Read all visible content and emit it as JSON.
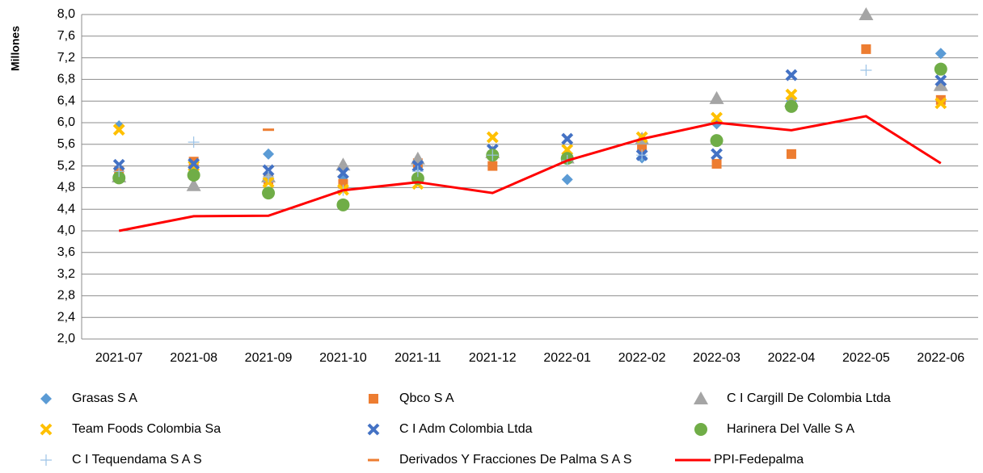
{
  "chart_data": {
    "type": "line",
    "y_label": "Millones",
    "categories": [
      "2021-07",
      "2021-08",
      "2021-09",
      "2021-10",
      "2021-11",
      "2021-12",
      "2022-01",
      "2022-02",
      "2022-03",
      "2022-04",
      "2022-05",
      "2022-06"
    ],
    "ylim": [
      2.0,
      8.0
    ],
    "yticks": [
      {
        "value": 2.0,
        "label": "2,0"
      },
      {
        "value": 2.4,
        "label": "2,4"
      },
      {
        "value": 2.8,
        "label": "2,8"
      },
      {
        "value": 3.2,
        "label": "3,2"
      },
      {
        "value": 3.6,
        "label": "3,6"
      },
      {
        "value": 4.0,
        "label": "4,0"
      },
      {
        "value": 4.4,
        "label": "4,4"
      },
      {
        "value": 4.8,
        "label": "4,8"
      },
      {
        "value": 5.2,
        "label": "5,2"
      },
      {
        "value": 5.6,
        "label": "5,6"
      },
      {
        "value": 6.0,
        "label": "6,0"
      },
      {
        "value": 6.4,
        "label": "6,4"
      },
      {
        "value": 6.8,
        "label": "6,8"
      },
      {
        "value": 7.2,
        "label": "7,2"
      },
      {
        "value": 7.6,
        "label": "7,6"
      },
      {
        "value": 8.0,
        "label": "8,0"
      }
    ],
    "grid": true,
    "series": [
      {
        "name": "Grasas S A",
        "color": "#5b9bd5",
        "marker": "diamond",
        "values": [
          5.94,
          5.2,
          5.42,
          5.0,
          5.2,
          5.4,
          4.95,
          5.35,
          5.98,
          6.4,
          null,
          7.28
        ]
      },
      {
        "name": "Qbco S A",
        "color": "#ed7d31",
        "marker": "square",
        "values": [
          5.1,
          5.28,
          4.95,
          4.87,
          5.25,
          5.2,
          5.35,
          5.54,
          5.24,
          5.42,
          7.36,
          6.42
        ]
      },
      {
        "name": "C I Cargill De Colombia Ltda",
        "color": "#a5a5a5",
        "marker": "triangle",
        "values": [
          5.0,
          4.84,
          5.0,
          5.22,
          5.33,
          5.45,
          5.35,
          5.7,
          6.45,
          6.4,
          8.0,
          6.69
        ]
      },
      {
        "name": "Team Foods Colombia Sa",
        "color": "#ffc000",
        "marker": "x",
        "values": [
          5.87,
          5.2,
          4.9,
          4.76,
          4.87,
          5.73,
          5.5,
          5.73,
          6.09,
          6.52,
          null,
          6.36
        ]
      },
      {
        "name": "C I Adm Colombia Ltda",
        "color": "#4472c4",
        "marker": "x",
        "values": [
          5.22,
          5.24,
          5.12,
          5.07,
          5.2,
          5.5,
          5.7,
          5.4,
          5.42,
          6.88,
          null,
          6.78
        ]
      },
      {
        "name": "Harinera Del Valle S A",
        "color": "#70ad47",
        "marker": "circle",
        "values": [
          4.98,
          5.03,
          4.7,
          4.48,
          4.97,
          5.4,
          5.34,
          null,
          5.67,
          6.3,
          null,
          6.99
        ]
      },
      {
        "name": "C I Tequendama S A S",
        "color": "#9dc3e6",
        "marker": "plus",
        "values": [
          5.1,
          5.64,
          5.0,
          4.75,
          5.1,
          5.4,
          5.3,
          5.4,
          null,
          null,
          6.97,
          null
        ]
      },
      {
        "name": "Derivados Y Fracciones De Palma S A S",
        "color": "#ed7d31",
        "marker": "dash",
        "values": [
          null,
          null,
          5.87,
          null,
          null,
          null,
          null,
          null,
          null,
          null,
          null,
          null
        ]
      },
      {
        "name": "PPI-Fedepalma",
        "color": "#ff0000",
        "marker": "line",
        "values": [
          4.0,
          4.27,
          4.28,
          4.75,
          4.9,
          4.7,
          5.3,
          5.7,
          6.0,
          5.86,
          6.12,
          5.25
        ]
      }
    ]
  }
}
